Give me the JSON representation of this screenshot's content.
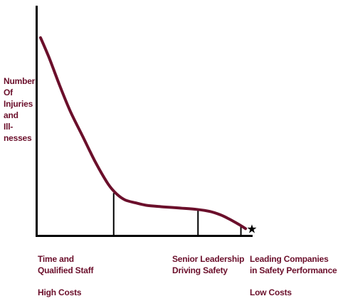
{
  "chart_data": {
    "type": "line",
    "title": "",
    "xlabel": "",
    "ylabel_lines": [
      "Number",
      "Of",
      "Injuries",
      "and",
      "Ill-",
      "nesses"
    ],
    "xlim": [
      0,
      100
    ],
    "ylim": [
      0,
      100
    ],
    "grid": false,
    "series": [
      {
        "x": [
          0,
          4,
          9,
          14,
          20,
          26,
          32,
          36,
          40,
          45,
          50,
          58,
          66,
          74,
          80,
          85,
          89,
          94,
          97
        ],
        "y": [
          100,
          90,
          76,
          63,
          50,
          37,
          26,
          21,
          18,
          16.5,
          15.3,
          14.5,
          13.9,
          13.2,
          12.2,
          10.5,
          8.5,
          5.5,
          3.5
        ]
      }
    ],
    "dividers": [
      {
        "x": 34.6,
        "y": 21.5
      },
      {
        "x": 74.5,
        "y": 13.2
      },
      {
        "x": 94.8,
        "y": 5.5
      }
    ],
    "endpoint_marker": {
      "x": 100,
      "y": 3.4,
      "symbol": "★"
    },
    "category_labels": [
      {
        "lines": [
          "Time and",
          "Qualified Staff"
        ]
      },
      {
        "lines": [
          "Senior Leadership",
          "Driving Safety"
        ]
      },
      {
        "lines": [
          "Leading Companies",
          "in Safety Performance"
        ]
      }
    ],
    "cost_labels": [
      "High Costs",
      "Low Costs"
    ]
  },
  "colors": {
    "curve": "#6b0f2b",
    "text": "#6b0f2b",
    "axis": "#000000"
  }
}
